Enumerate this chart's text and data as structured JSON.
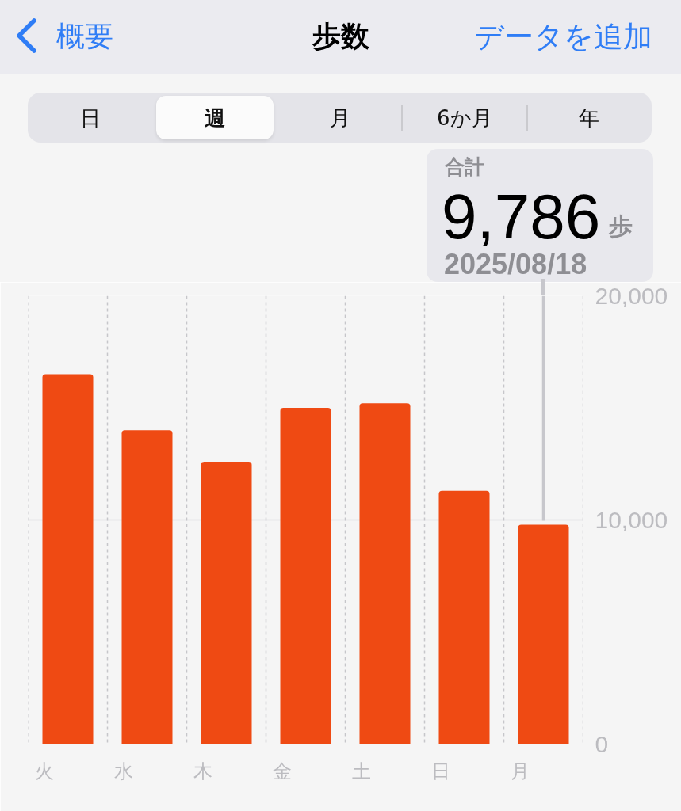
{
  "chart_data": {
    "type": "bar",
    "title": "歩数",
    "categories": [
      "火",
      "水",
      "木",
      "金",
      "土",
      "日",
      "月"
    ],
    "values": [
      16500,
      14000,
      12600,
      15000,
      15200,
      11300,
      9786
    ],
    "color": "#ef4a13",
    "ylim": [
      0,
      20000
    ],
    "yticks": [
      0,
      {
        "value": 10000,
        "label": "10,000"
      },
      {
        "value": 20000,
        "label": "20,000"
      }
    ],
    "grid": true,
    "annotations": [
      "概要",
      "データを追加",
      "日",
      "週",
      "月",
      "6か月",
      "年",
      "合計",
      "9,786",
      "歩",
      "2025/08/18"
    ]
  }
}
